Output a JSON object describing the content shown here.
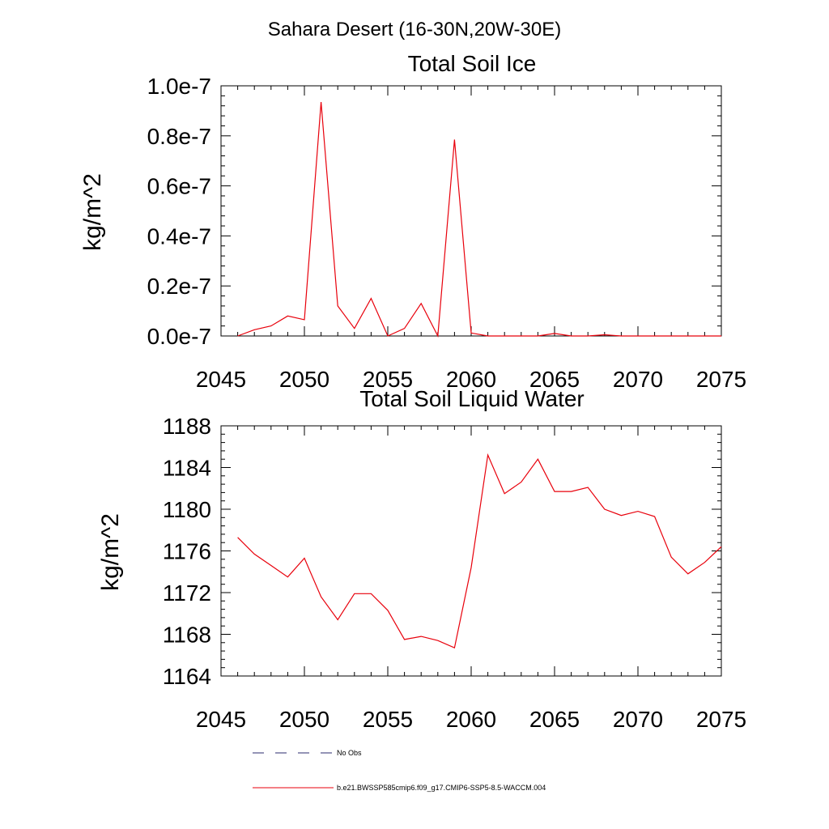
{
  "figure_title": "Sahara Desert (16-30N,20W-30E)",
  "line_color": "#e8000b",
  "obs_color": "#2b2b6e",
  "legend": {
    "obs_label": "No Obs",
    "model_label": "b.e21.BWSSP585cmip6.f09_g17.CMIP6-SSP5-8.5-WACCM.004"
  },
  "chart_data": [
    {
      "type": "line",
      "title": "Total Soil Ice",
      "xlabel": "",
      "ylabel": "kg/m^2",
      "xlim": [
        2045,
        2075
      ],
      "ylim": [
        0,
        1e-07
      ],
      "xticks": [
        2045,
        2050,
        2055,
        2060,
        2065,
        2070,
        2075
      ],
      "xtick_labels": [
        "2045",
        "2050",
        "2055",
        "2060",
        "2065",
        "2070",
        "2075"
      ],
      "yticks": [
        0,
        2e-08,
        4e-08,
        6e-08,
        8e-08,
        1e-07
      ],
      "ytick_labels": [
        "0.0e-7",
        "0.2e-7",
        "0.4e-7",
        "0.6e-7",
        "0.8e-7",
        "1.0e-7"
      ],
      "x": [
        2046,
        2047,
        2048,
        2049,
        2050,
        2051,
        2052,
        2053,
        2054,
        2055,
        2056,
        2057,
        2058,
        2059,
        2060,
        2061,
        2062,
        2063,
        2064,
        2065,
        2066,
        2067,
        2068,
        2069,
        2070,
        2071,
        2072,
        2073,
        2074,
        2075
      ],
      "series": [
        {
          "name": "b.e21.BWSSP585cmip6.f09_g17.CMIP6-SSP5-8.5-WACCM.004",
          "values": [
            0,
            2.5e-09,
            4e-09,
            8e-09,
            6.5e-09,
            9.35e-08,
            1.2e-08,
            3e-09,
            1.5e-08,
            0,
            3e-09,
            1.3e-08,
            0,
            7.85e-08,
            1.2e-09,
            0,
            0,
            0,
            0,
            1e-09,
            0,
            0,
            5e-10,
            0,
            0,
            0,
            0,
            0,
            0,
            0
          ]
        }
      ]
    },
    {
      "type": "line",
      "title": "Total Soil Liquid Water",
      "xlabel": "",
      "ylabel": "kg/m^2",
      "xlim": [
        2045,
        2075
      ],
      "ylim": [
        1164,
        1188
      ],
      "xticks": [
        2045,
        2050,
        2055,
        2060,
        2065,
        2070,
        2075
      ],
      "xtick_labels": [
        "2045",
        "2050",
        "2055",
        "2060",
        "2065",
        "2070",
        "2075"
      ],
      "yticks": [
        1164,
        1168,
        1172,
        1176,
        1180,
        1184,
        1188
      ],
      "ytick_labels": [
        "1164",
        "1168",
        "1172",
        "1176",
        "1180",
        "1184",
        "1188"
      ],
      "x": [
        2046,
        2047,
        2048,
        2049,
        2050,
        2051,
        2052,
        2053,
        2054,
        2055,
        2056,
        2057,
        2058,
        2059,
        2060,
        2061,
        2062,
        2063,
        2064,
        2065,
        2066,
        2067,
        2068,
        2069,
        2070,
        2071,
        2072,
        2073,
        2074,
        2075
      ],
      "series": [
        {
          "name": "b.e21.BWSSP585cmip6.f09_g17.CMIP6-SSP5-8.5-WACCM.004",
          "values": [
            1177.3,
            1175.7,
            1174.6,
            1173.5,
            1175.3,
            1171.6,
            1169.4,
            1171.9,
            1171.9,
            1170.3,
            1167.5,
            1167.8,
            1167.4,
            1166.7,
            1174.4,
            1185.2,
            1181.5,
            1182.6,
            1184.8,
            1181.7,
            1181.7,
            1182.1,
            1180.0,
            1179.4,
            1179.8,
            1179.3,
            1175.4,
            1173.8,
            1174.9,
            1176.4
          ]
        }
      ]
    }
  ]
}
